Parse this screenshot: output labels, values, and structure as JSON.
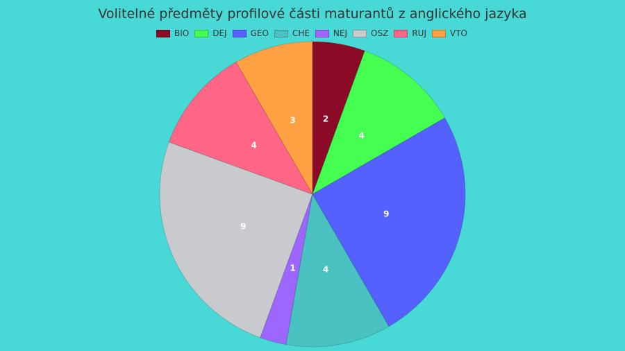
{
  "chart_data": {
    "type": "pie",
    "title": "Volitelné předměty profilové části maturantů z anglického jazyka",
    "categories": [
      "BIO",
      "DEJ",
      "GEO",
      "CHE",
      "NEJ",
      "OSZ",
      "RUJ",
      "VTO"
    ],
    "values": [
      2,
      4,
      9,
      4,
      1,
      9,
      4,
      3
    ],
    "colors": [
      "#8b0a26",
      "#44ff52",
      "#5561ff",
      "#4ac2c2",
      "#9d66ff",
      "#c9cace",
      "#ff6584",
      "#ffa142"
    ],
    "legend_position": "top",
    "direction": "clockwise",
    "start": "top"
  }
}
